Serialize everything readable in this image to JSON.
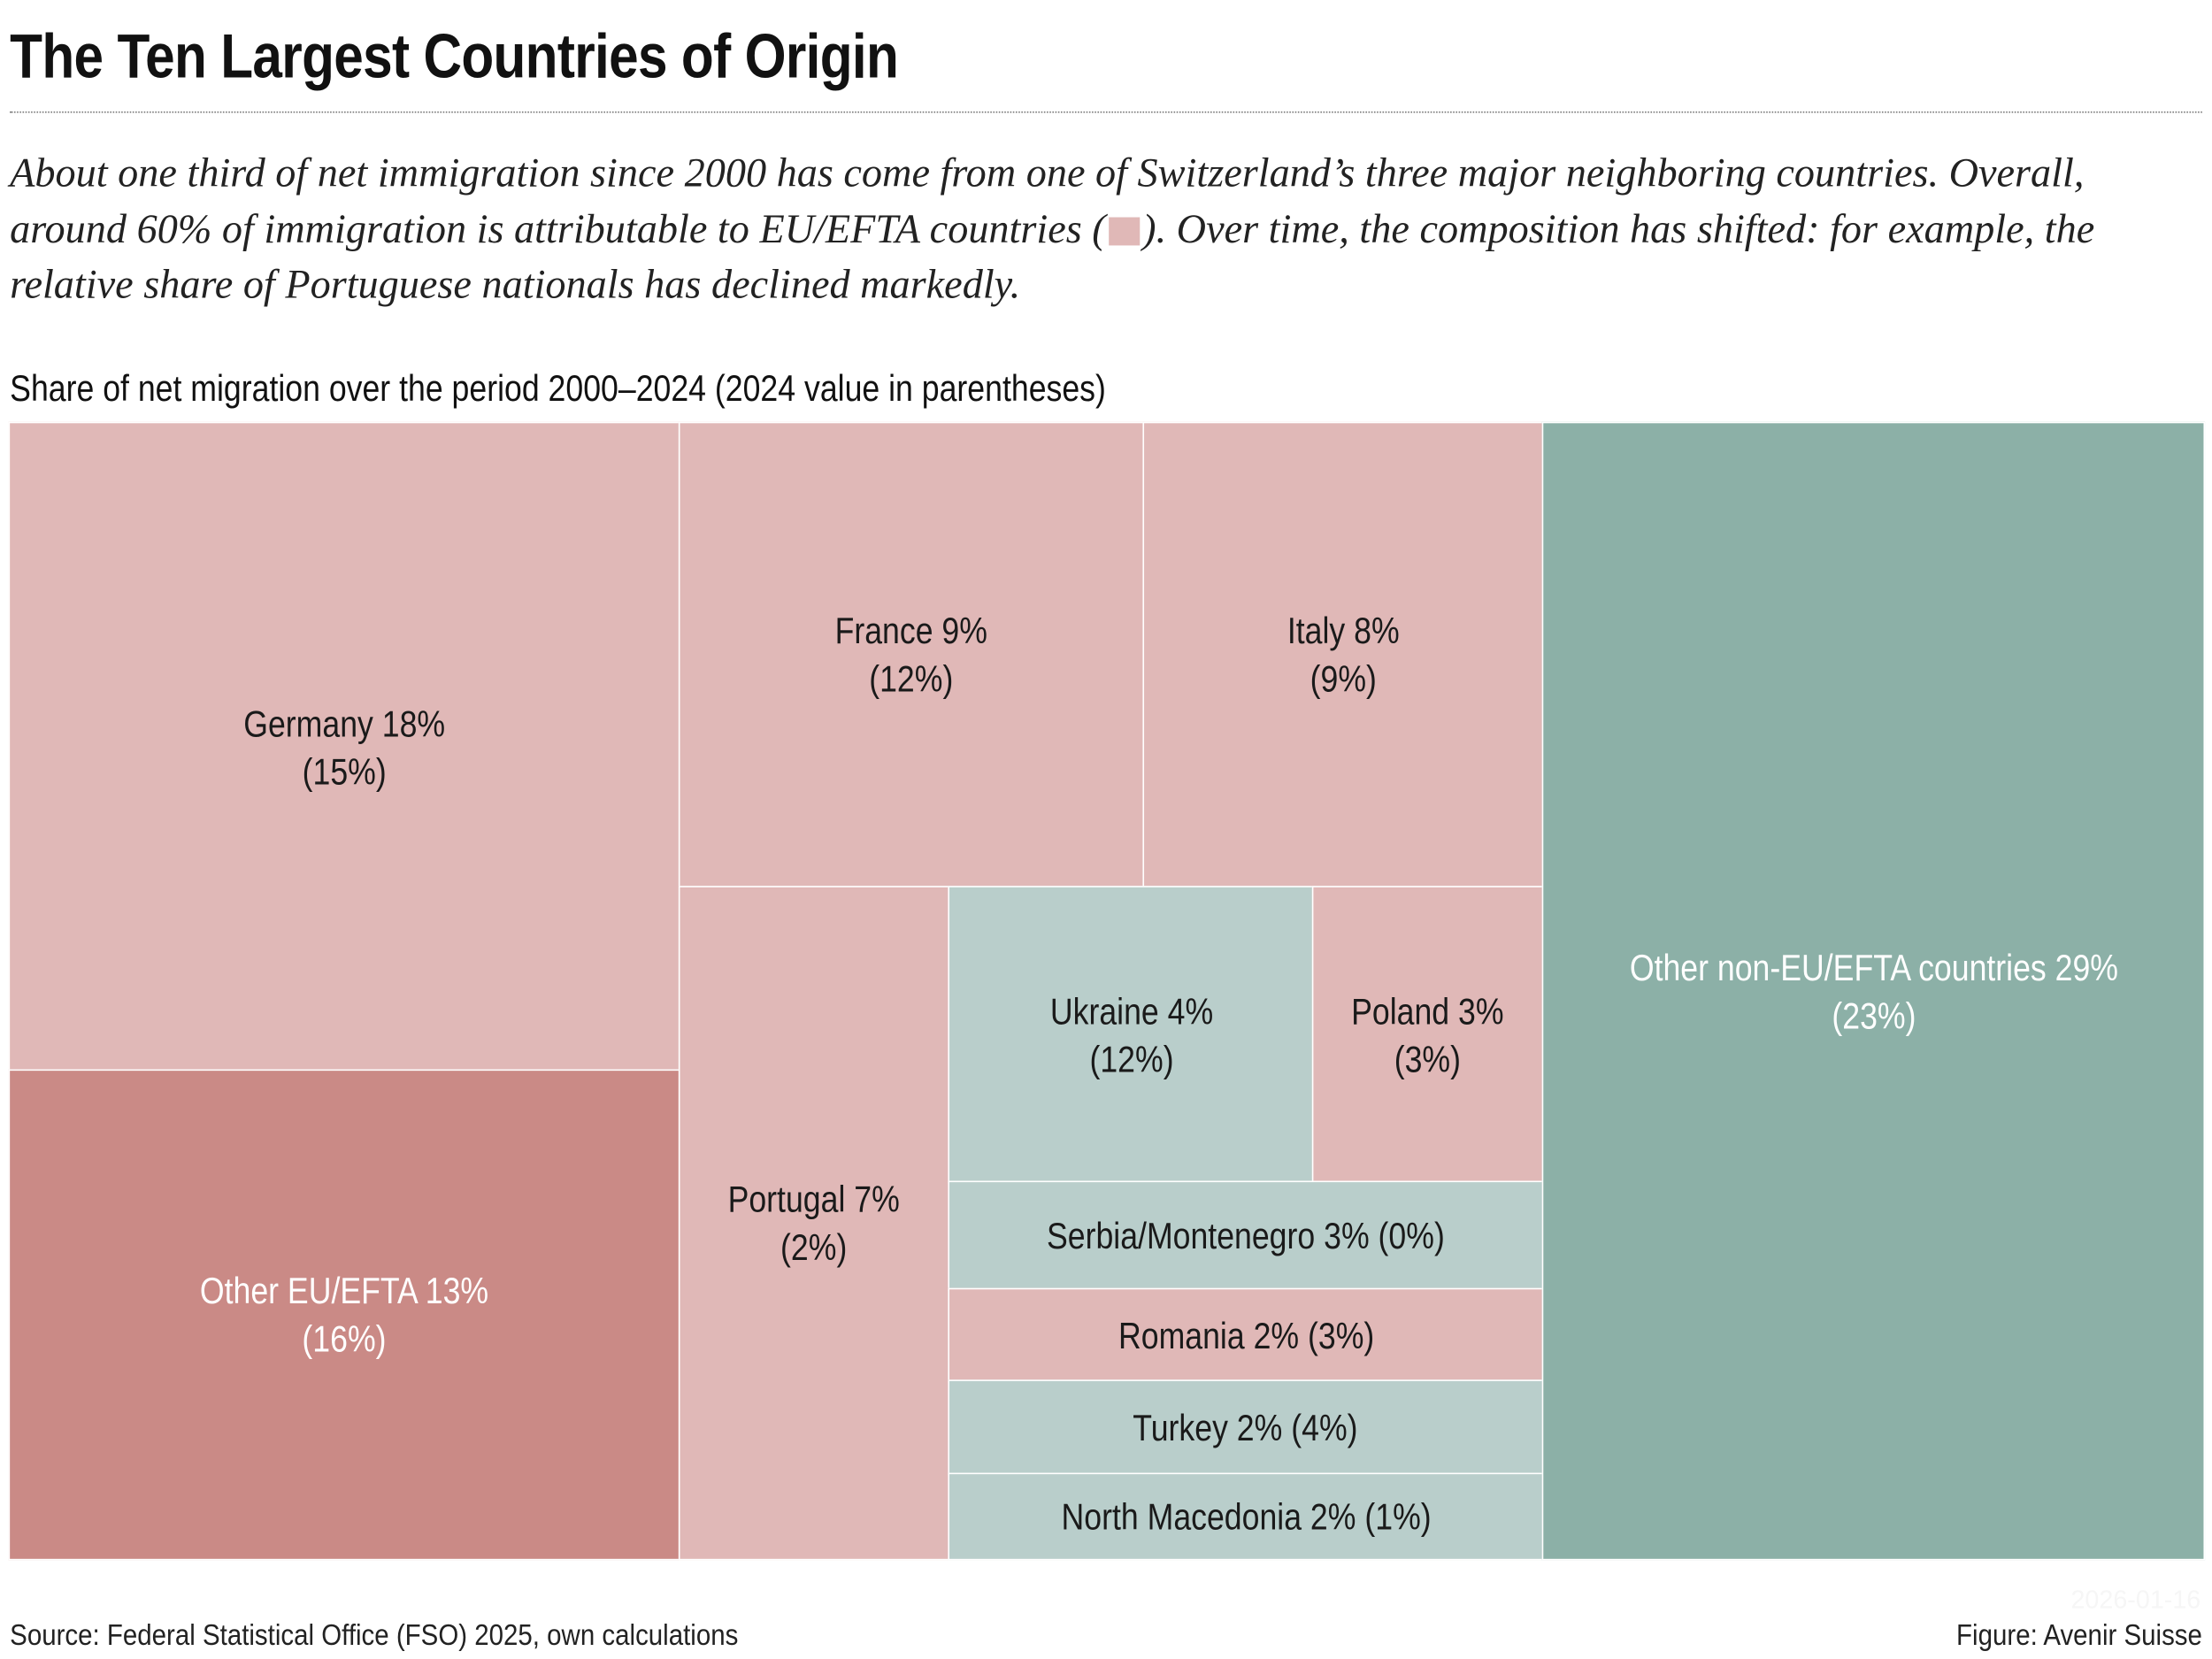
{
  "title": "The Ten Largest Countries of Origin",
  "lead": {
    "part1": "About one third of net immigration since 2000 has come from one of Switzerland’s three major neighboring countries. Overall, around 60% of immigration is attributable to EU/EFTA countries (",
    "part2": "). Over time, the composition has shifted: for example, the relative share of Portuguese nationals has declined markedly."
  },
  "colors": {
    "eu": "#e0b8b7",
    "eu_other": "#ca8a86",
    "non_eu": "#b9cecb",
    "non_eu_other": "#8cb0a7"
  },
  "chart_data": {
    "type": "treemap",
    "title": "Share of net migration over the period 2000–2024 (2024 value in parentheses)",
    "items": [
      {
        "name": "Germany",
        "group": "EU/EFTA",
        "share_2000_2024": 18,
        "share_2024": 15,
        "line1": "Germany 18%",
        "line2": "(15%)"
      },
      {
        "name": "Other EU/EFTA",
        "group": "EU/EFTA",
        "share_2000_2024": 13,
        "share_2024": 16,
        "line1": "Other EU/EFTA 13%",
        "line2": "(16%)"
      },
      {
        "name": "France",
        "group": "EU/EFTA",
        "share_2000_2024": 9,
        "share_2024": 12,
        "line1": "France 9%",
        "line2": "(12%)"
      },
      {
        "name": "Italy",
        "group": "EU/EFTA",
        "share_2000_2024": 8,
        "share_2024": 9,
        "line1": "Italy 8%",
        "line2": "(9%)"
      },
      {
        "name": "Portugal",
        "group": "EU/EFTA",
        "share_2000_2024": 7,
        "share_2024": 2,
        "line1": "Portugal 7%",
        "line2": "(2%)"
      },
      {
        "name": "Ukraine",
        "group": "non-EU/EFTA",
        "share_2000_2024": 4,
        "share_2024": 12,
        "line1": "Ukraine 4%",
        "line2": "(12%)"
      },
      {
        "name": "Poland",
        "group": "EU/EFTA",
        "share_2000_2024": 3,
        "share_2024": 3,
        "line1": "Poland 3%",
        "line2": "(3%)"
      },
      {
        "name": "Serbia/Montenegro",
        "group": "non-EU/EFTA",
        "share_2000_2024": 3,
        "share_2024": 0,
        "line1": "Serbia/Montenegro 3% (0%)"
      },
      {
        "name": "Romania",
        "group": "EU/EFTA",
        "share_2000_2024": 2,
        "share_2024": 3,
        "line1": "Romania 2% (3%)"
      },
      {
        "name": "Turkey",
        "group": "non-EU/EFTA",
        "share_2000_2024": 2,
        "share_2024": 4,
        "line1": "Turkey 2% (4%)"
      },
      {
        "name": "North Macedonia",
        "group": "non-EU/EFTA",
        "share_2000_2024": 2,
        "share_2024": 1,
        "line1": "North Macedonia 2% (1%)"
      },
      {
        "name": "Other non-EU/EFTA countries",
        "group": "non-EU/EFTA",
        "share_2000_2024": 29,
        "share_2024": 23,
        "line1": "Other non-EU/EFTA countries 29%",
        "line2": "(23%)"
      }
    ]
  },
  "footer": {
    "source": "Source: Federal Statistical Office (FSO) 2025, own calculations",
    "credit": "Figure: Avenir Suisse",
    "watermark": "2026-01-16"
  }
}
